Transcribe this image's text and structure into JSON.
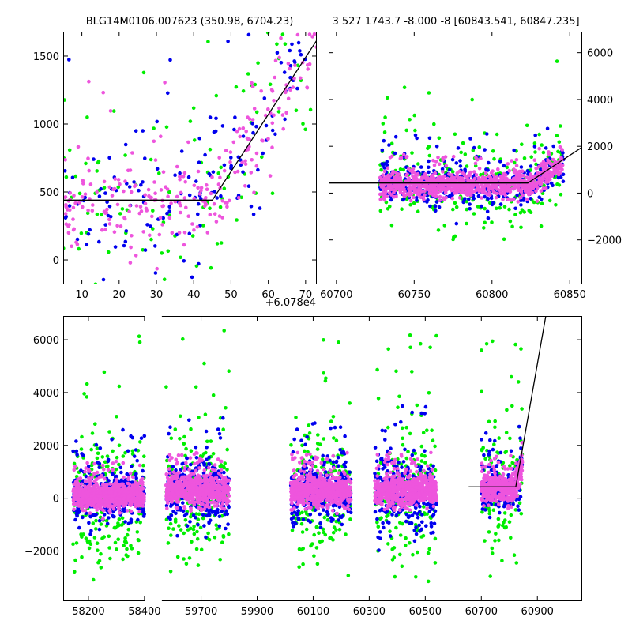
{
  "chart_data": [
    {
      "type": "scatter",
      "panel": "top-left",
      "title": "BLG14M0106.007623 (350.98, 6704.23)",
      "offset_label": "+6.078e4",
      "xlim": [
        5,
        73
      ],
      "ylim": [
        -180,
        1680
      ],
      "x_ticks": [
        10,
        20,
        30,
        40,
        50,
        60,
        70
      ],
      "x_tick_labels": [
        "10",
        "20",
        "30",
        "40",
        "50",
        "60",
        "70"
      ],
      "y_ticks": [
        0,
        500,
        1000,
        1500
      ],
      "y_tick_labels": [
        "0",
        "500",
        "1000",
        "1500"
      ],
      "y_axis_side": "left",
      "model": {
        "x": [
          5,
          45,
          75
        ],
        "y": [
          440,
          440,
          1700
        ]
      },
      "series": [
        {
          "name": "green",
          "color": "#00ee00",
          "seed": 11,
          "count": 110,
          "segments": [
            {
              "x0": 5,
              "x1": 73,
              "base": 440,
              "slope_start": 45,
              "slope": 42,
              "spread": 600
            }
          ]
        },
        {
          "name": "blue",
          "color": "#0000ee",
          "seed": 23,
          "count": 150,
          "segments": [
            {
              "x0": 5,
              "x1": 73,
              "base": 440,
              "slope_start": 45,
              "slope": 42,
              "spread": 420
            }
          ]
        },
        {
          "name": "magenta",
          "color": "#ee55dd",
          "seed": 37,
          "count": 260,
          "segments": [
            {
              "x0": 5,
              "x1": 73,
              "base": 440,
              "slope_start": 45,
              "slope": 42,
              "spread": 340
            }
          ]
        }
      ]
    },
    {
      "type": "scatter",
      "panel": "top-right",
      "title": "3 527 1743.7 -8.000 -8 [60843.541, 60847.235]",
      "xlim": [
        60695,
        60858
      ],
      "ylim": [
        -3900,
        6900
      ],
      "x_ticks": [
        60700,
        60750,
        60800,
        60850
      ],
      "x_tick_labels": [
        "60700",
        "60750",
        "60800",
        "60850"
      ],
      "y_ticks": [
        -2000,
        0,
        2000,
        4000,
        6000
      ],
      "y_tick_labels": [
        "−2000",
        "0",
        "2000",
        "4000",
        "6000"
      ],
      "y_axis_side": "right",
      "model": {
        "x": [
          60695,
          60823,
          60860
        ],
        "y": [
          430,
          430,
          2050
        ]
      },
      "series": [
        {
          "name": "green",
          "color": "#00ee00",
          "seed": 51,
          "count": 260,
          "segments": [
            {
              "x0": 60728,
              "x1": 60846,
              "base": 350,
              "slope_start": 60823,
              "slope": 40,
              "spread": 1800
            }
          ]
        },
        {
          "name": "blue",
          "color": "#0000ee",
          "seed": 63,
          "count": 420,
          "segments": [
            {
              "x0": 60728,
              "x1": 60846,
              "base": 350,
              "slope_start": 60823,
              "slope": 40,
              "spread": 900
            }
          ]
        },
        {
          "name": "magenta",
          "color": "#ee55dd",
          "seed": 77,
          "count": 900,
          "segments": [
            {
              "x0": 60728,
              "x1": 60846,
              "base": 350,
              "slope_start": 60823,
              "slope": 40,
              "spread": 500
            }
          ]
        }
      ]
    },
    {
      "type": "scatter",
      "panel": "bottom",
      "title": "",
      "xlim": [
        58110,
        61060
      ],
      "ylim": [
        -3900,
        6900
      ],
      "x_breaks": [
        {
          "from": 58400,
          "to": 59560
        }
      ],
      "x_ticks": [
        58200,
        58400,
        59700,
        59900,
        60100,
        60300,
        60500,
        60700,
        60900
      ],
      "x_tick_labels": [
        "58200",
        "58400",
        "59700",
        "59900",
        "60100",
        "60300",
        "60500",
        "60700",
        "60900"
      ],
      "y_ticks": [
        -2000,
        0,
        2000,
        4000,
        6000
      ],
      "y_tick_labels": [
        "−2000",
        "0",
        "2000",
        "4000",
        "6000"
      ],
      "y_axis_side": "left",
      "model": {
        "x": [
          60655,
          60823,
          60930
        ],
        "y": [
          430,
          430,
          6900
        ]
      },
      "series": [
        {
          "name": "green",
          "color": "#00ee00",
          "seed": 101,
          "count": 900,
          "segments": [
            {
              "x0": 58145,
              "x1": 58400,
              "base": 150,
              "slope_start": 99999,
              "slope": 0,
              "spread": 2400
            },
            {
              "x0": 59575,
              "x1": 59800,
              "base": 250,
              "slope_start": 99999,
              "slope": 0,
              "spread": 2400
            },
            {
              "x0": 60020,
              "x1": 60235,
              "base": 250,
              "slope_start": 99999,
              "slope": 0,
              "spread": 2400
            },
            {
              "x0": 60320,
              "x1": 60540,
              "base": 250,
              "slope_start": 99999,
              "slope": 0,
              "spread": 2400
            },
            {
              "x0": 60700,
              "x1": 60846,
              "base": 350,
              "slope_start": 60823,
              "slope": 40,
              "spread": 2200
            }
          ]
        },
        {
          "name": "blue",
          "color": "#0000ee",
          "seed": 131,
          "count": 1500,
          "segments": [
            {
              "x0": 58145,
              "x1": 58400,
              "base": 100,
              "slope_start": 99999,
              "slope": 0,
              "spread": 1000
            },
            {
              "x0": 59575,
              "x1": 59800,
              "base": 300,
              "slope_start": 99999,
              "slope": 0,
              "spread": 1100
            },
            {
              "x0": 60020,
              "x1": 60235,
              "base": 250,
              "slope_start": 99999,
              "slope": 0,
              "spread": 1100
            },
            {
              "x0": 60320,
              "x1": 60540,
              "base": 200,
              "slope_start": 99999,
              "slope": 0,
              "spread": 1300
            },
            {
              "x0": 60700,
              "x1": 60846,
              "base": 350,
              "slope_start": 60823,
              "slope": 40,
              "spread": 900
            }
          ]
        },
        {
          "name": "magenta",
          "color": "#ee55dd",
          "seed": 173,
          "count": 3200,
          "segments": [
            {
              "x0": 58145,
              "x1": 58400,
              "base": 100,
              "slope_start": 99999,
              "slope": 0,
              "spread": 500
            },
            {
              "x0": 59575,
              "x1": 59800,
              "base": 300,
              "slope_start": 99999,
              "slope": 0,
              "spread": 550
            },
            {
              "x0": 60020,
              "x1": 60235,
              "base": 300,
              "slope_start": 99999,
              "slope": 0,
              "spread": 550
            },
            {
              "x0": 60320,
              "x1": 60540,
              "base": 300,
              "slope_start": 99999,
              "slope": 0,
              "spread": 550
            },
            {
              "x0": 60700,
              "x1": 60846,
              "base": 350,
              "slope_start": 60823,
              "slope": 40,
              "spread": 500
            }
          ]
        }
      ]
    }
  ]
}
